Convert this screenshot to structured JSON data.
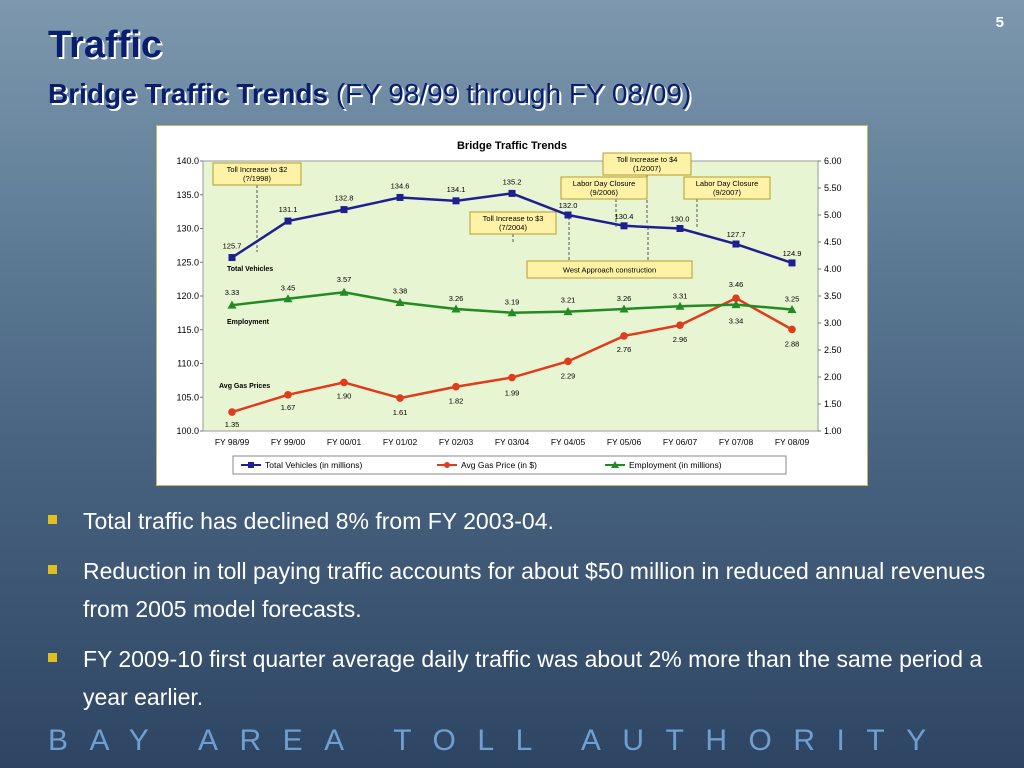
{
  "page_number": "5",
  "title": "Traffic",
  "subtitle_bold": "Bridge Traffic Trends",
  "subtitle_rest": " (FY 98/99 through FY 08/09)",
  "bullets": [
    "Total traffic has declined 8% from FY 2003-04.",
    "Reduction in toll paying traffic accounts for about $50 million in reduced annual revenues from 2005 model forecasts.",
    "FY 2009-10 first quarter average daily traffic was about 2% more than the same period a year earlier."
  ],
  "footer": "BAY AREA TOLL AUTHORITY",
  "colors": {
    "title": "#0a1e6e",
    "plot_bg": "#e8f5d2",
    "total_vehicles": "#1f1f8f",
    "avg_gas": "#e03c1c",
    "employment": "#228b22",
    "bullet": "#e0c020",
    "footer": "#6f9fd0"
  },
  "chart_data": {
    "type": "line",
    "title": "Bridge Traffic Trends",
    "categories": [
      "FY 98/99",
      "FY 99/00",
      "FY 00/01",
      "FY 01/02",
      "FY 02/03",
      "FY 03/04",
      "FY 04/05",
      "FY 05/06",
      "FY 06/07",
      "FY 07/08",
      "FY 08/09"
    ],
    "left_axis": {
      "min": 100,
      "max": 140,
      "ticks": [
        "100.0",
        "105.0",
        "110.0",
        "115.0",
        "120.0",
        "125.0",
        "130.0",
        "135.0",
        "140.0"
      ]
    },
    "right_axis": {
      "min": 1.0,
      "max": 6.0,
      "ticks": [
        "1.00",
        "1.50",
        "2.00",
        "2.50",
        "3.00",
        "3.50",
        "4.00",
        "4.50",
        "5.00",
        "5.50",
        "6.00"
      ]
    },
    "grid": false,
    "legend_position": "bottom",
    "series": [
      {
        "name": "Total Vehicles (in millions)",
        "axis": "left",
        "label": "Total Vehicles",
        "values": [
          125.7,
          131.1,
          132.8,
          134.6,
          134.1,
          135.2,
          132.0,
          130.4,
          130.0,
          127.7,
          124.9
        ],
        "labels": [
          "125.7",
          "131.1",
          "132.8",
          "134.6",
          "134.1",
          "135.2",
          "132.0",
          "130.4",
          "130.0",
          "127.7",
          "124.9"
        ]
      },
      {
        "name": "Avg Gas Price (in $)",
        "axis": "right",
        "label": "Avg Gas Prices",
        "values": [
          1.35,
          1.67,
          1.9,
          1.61,
          1.82,
          1.99,
          2.29,
          2.76,
          2.96,
          3.46,
          2.88
        ],
        "labels": [
          "1.35",
          "1.67",
          "1.90",
          "1.61",
          "1.82",
          "1.99",
          "2.29",
          "2.76",
          "2.96",
          "3.46",
          "2.88"
        ]
      },
      {
        "name": "Employment (in millions)",
        "axis": "right",
        "label": "Employment",
        "values": [
          3.33,
          3.45,
          3.57,
          3.38,
          3.26,
          3.19,
          3.21,
          3.26,
          3.31,
          3.34,
          3.25
        ],
        "labels": [
          "3.33",
          "3.45",
          "3.57",
          "3.38",
          "3.26",
          "3.19",
          "3.21",
          "3.26",
          "3.31",
          "3.34",
          "3.25"
        ]
      }
    ],
    "annotations": [
      {
        "lines": [
          "Toll Increase to $2",
          "(?/1998)"
        ],
        "at_category": 0
      },
      {
        "lines": [
          "Toll Increase to $4",
          "(1/2007)"
        ],
        "at_category": 8
      },
      {
        "lines": [
          "Labor Day Closure",
          "(9/2006)"
        ],
        "at_category": 7
      },
      {
        "lines": [
          "Labor Day Closure",
          "(9/2007)"
        ],
        "at_category": 8
      },
      {
        "lines": [
          "Toll Increase to $3",
          "(7/2004)"
        ],
        "at_category": 5
      },
      {
        "lines": [
          "West Approach construction"
        ],
        "at_category": 6
      }
    ]
  }
}
